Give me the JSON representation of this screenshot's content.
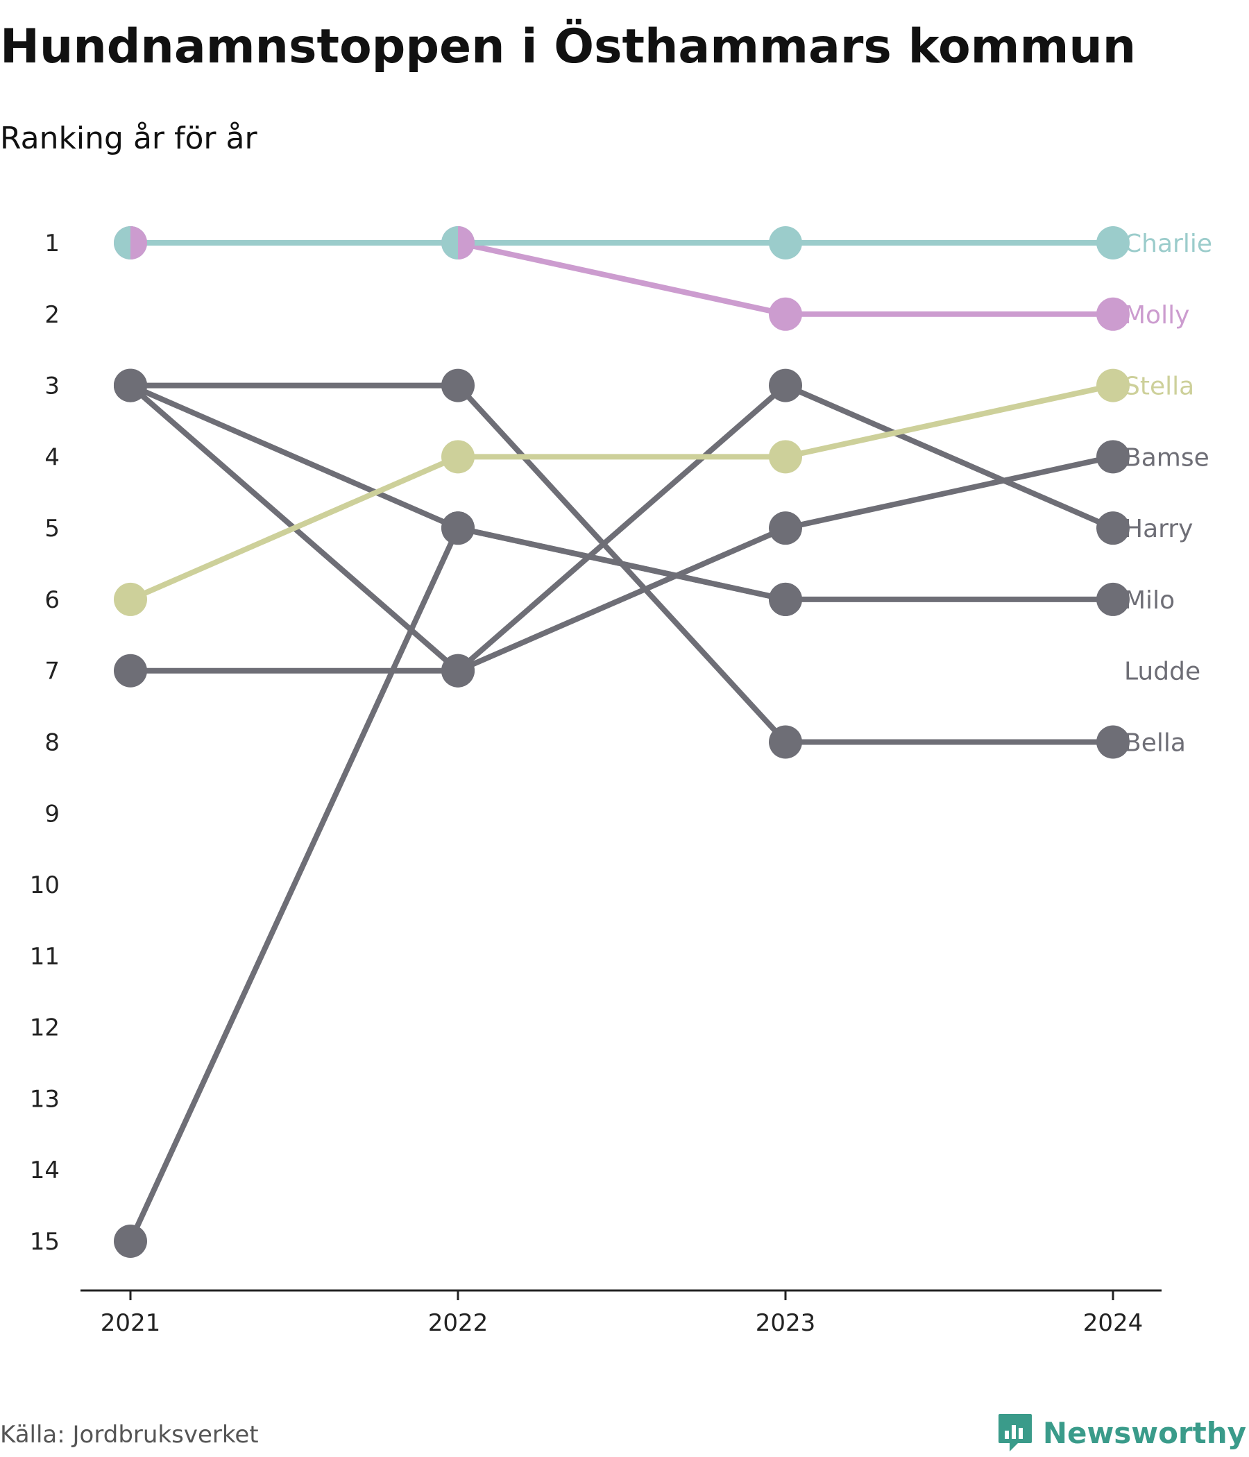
{
  "header": {
    "title": "Hundnamnstoppen i Östhammars kommun",
    "subtitle": "Ranking år för år"
  },
  "footer": {
    "source": "Källa: Jordbruksverket",
    "brand": "Newsworthy",
    "brand_icon": "bar-chart-bubble-icon"
  },
  "colors": {
    "grey": "#6e6e76",
    "axis": "#222222",
    "brand": "#3a9b8a"
  },
  "chart_data": {
    "type": "line",
    "x": [
      2021,
      2022,
      2023,
      2024
    ],
    "xlabel": "",
    "ylabel": "",
    "ylim": [
      1,
      15
    ],
    "y_inverted": true,
    "y_ticks": [
      1,
      2,
      3,
      4,
      5,
      6,
      7,
      8,
      9,
      10,
      11,
      12,
      13,
      14,
      15
    ],
    "legend": "end labels at right",
    "grid": false,
    "series": [
      {
        "name": "Ludde",
        "color": "#6e6e76",
        "values": [
          15,
          5,
          6,
          null
        ]
      },
      {
        "name": "Bella",
        "color": "#6e6e76",
        "values": [
          3,
          3,
          8,
          8
        ]
      },
      {
        "name": "Milo",
        "color": "#6e6e76",
        "values": [
          3,
          5,
          6,
          6
        ]
      },
      {
        "name": "Bamse",
        "color": "#6e6e76",
        "values": [
          7,
          7,
          5,
          4
        ]
      },
      {
        "name": "Harry",
        "color": "#6e6e76",
        "values": [
          3,
          7,
          3,
          5
        ]
      },
      {
        "name": "Stella",
        "color": "#cdd09a",
        "values": [
          6,
          4,
          4,
          3
        ]
      },
      {
        "name": "Molly",
        "color": "#cc9ccf",
        "values": [
          1,
          1,
          2,
          2
        ]
      },
      {
        "name": "Charlie",
        "color": "#9bcccb",
        "values": [
          1,
          1,
          1,
          1
        ]
      }
    ]
  }
}
